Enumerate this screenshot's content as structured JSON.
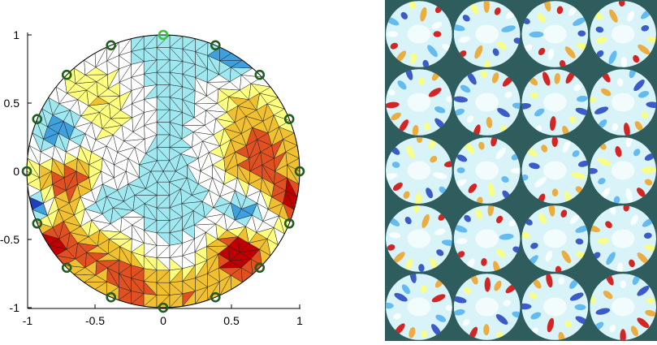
{
  "axes": {
    "x_ticks": [
      "-1",
      "-0.5",
      "0",
      "0.5",
      "1"
    ],
    "y_ticks": [
      "1",
      "0.5",
      "0",
      "-0.5",
      "-1"
    ],
    "xlim": [
      -1,
      1
    ],
    "ylim": [
      -1,
      1
    ]
  },
  "electrodes": {
    "count": 16,
    "highlight_index": 0,
    "ring_color": "#1f5e1f",
    "highlight_color": "#3fbf3f"
  },
  "colors": {
    "background": "#ffffff",
    "grid_background": "#2f5d5d",
    "mesh_edge": "#222222",
    "palette": [
      "#1f3fbf",
      "#3fa0e0",
      "#9fe8f0",
      "#ffffff",
      "#ffff80",
      "#f0c030",
      "#e05020",
      "#c00000"
    ]
  },
  "reconstruction_grid": {
    "rows": 5,
    "cols": 4
  }
}
